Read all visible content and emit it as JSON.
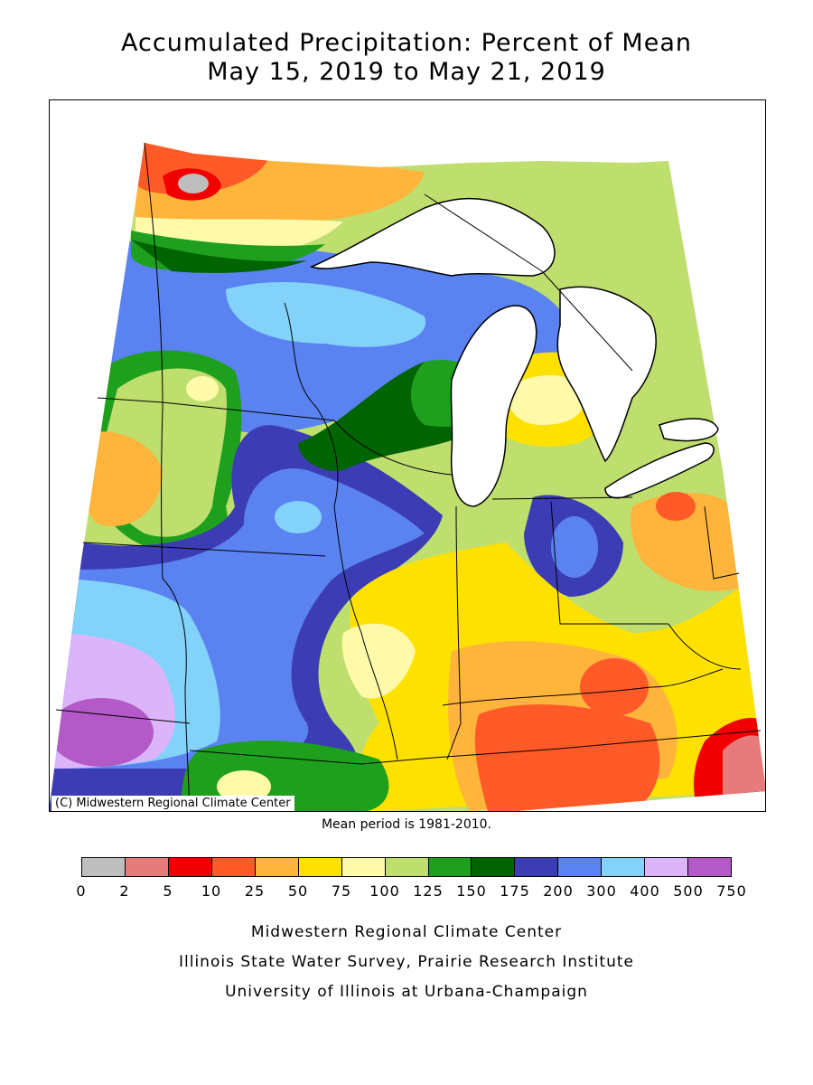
{
  "title": {
    "line1": "Accumulated Precipitation: Percent of Mean",
    "line2": "May 15, 2019 to May 21, 2019"
  },
  "map": {
    "region": "Midwest United States",
    "credit": "(C) Midwestern Regional Climate Center",
    "mean_note": "Mean period is 1981-2010."
  },
  "legend": {
    "ticks": [
      "0",
      "2",
      "5",
      "10",
      "25",
      "50",
      "75",
      "100",
      "125",
      "150",
      "175",
      "200",
      "300",
      "400",
      "500",
      "750"
    ],
    "colors": [
      "#bebebe",
      "#e77b7b",
      "#f00000",
      "#ff5a28",
      "#ffb43c",
      "#ffe100",
      "#fffaaa",
      "#bede6e",
      "#1ea01e",
      "#006400",
      "#3c3cb4",
      "#5a82f0",
      "#82d2fa",
      "#dcb4fa",
      "#b45ac8"
    ]
  },
  "footer": {
    "line1": "Midwestern Regional Climate Center",
    "line2": "Illinois State Water Survey, Prairie Research Institute",
    "line3": "University of Illinois at Urbana-Champaign"
  }
}
